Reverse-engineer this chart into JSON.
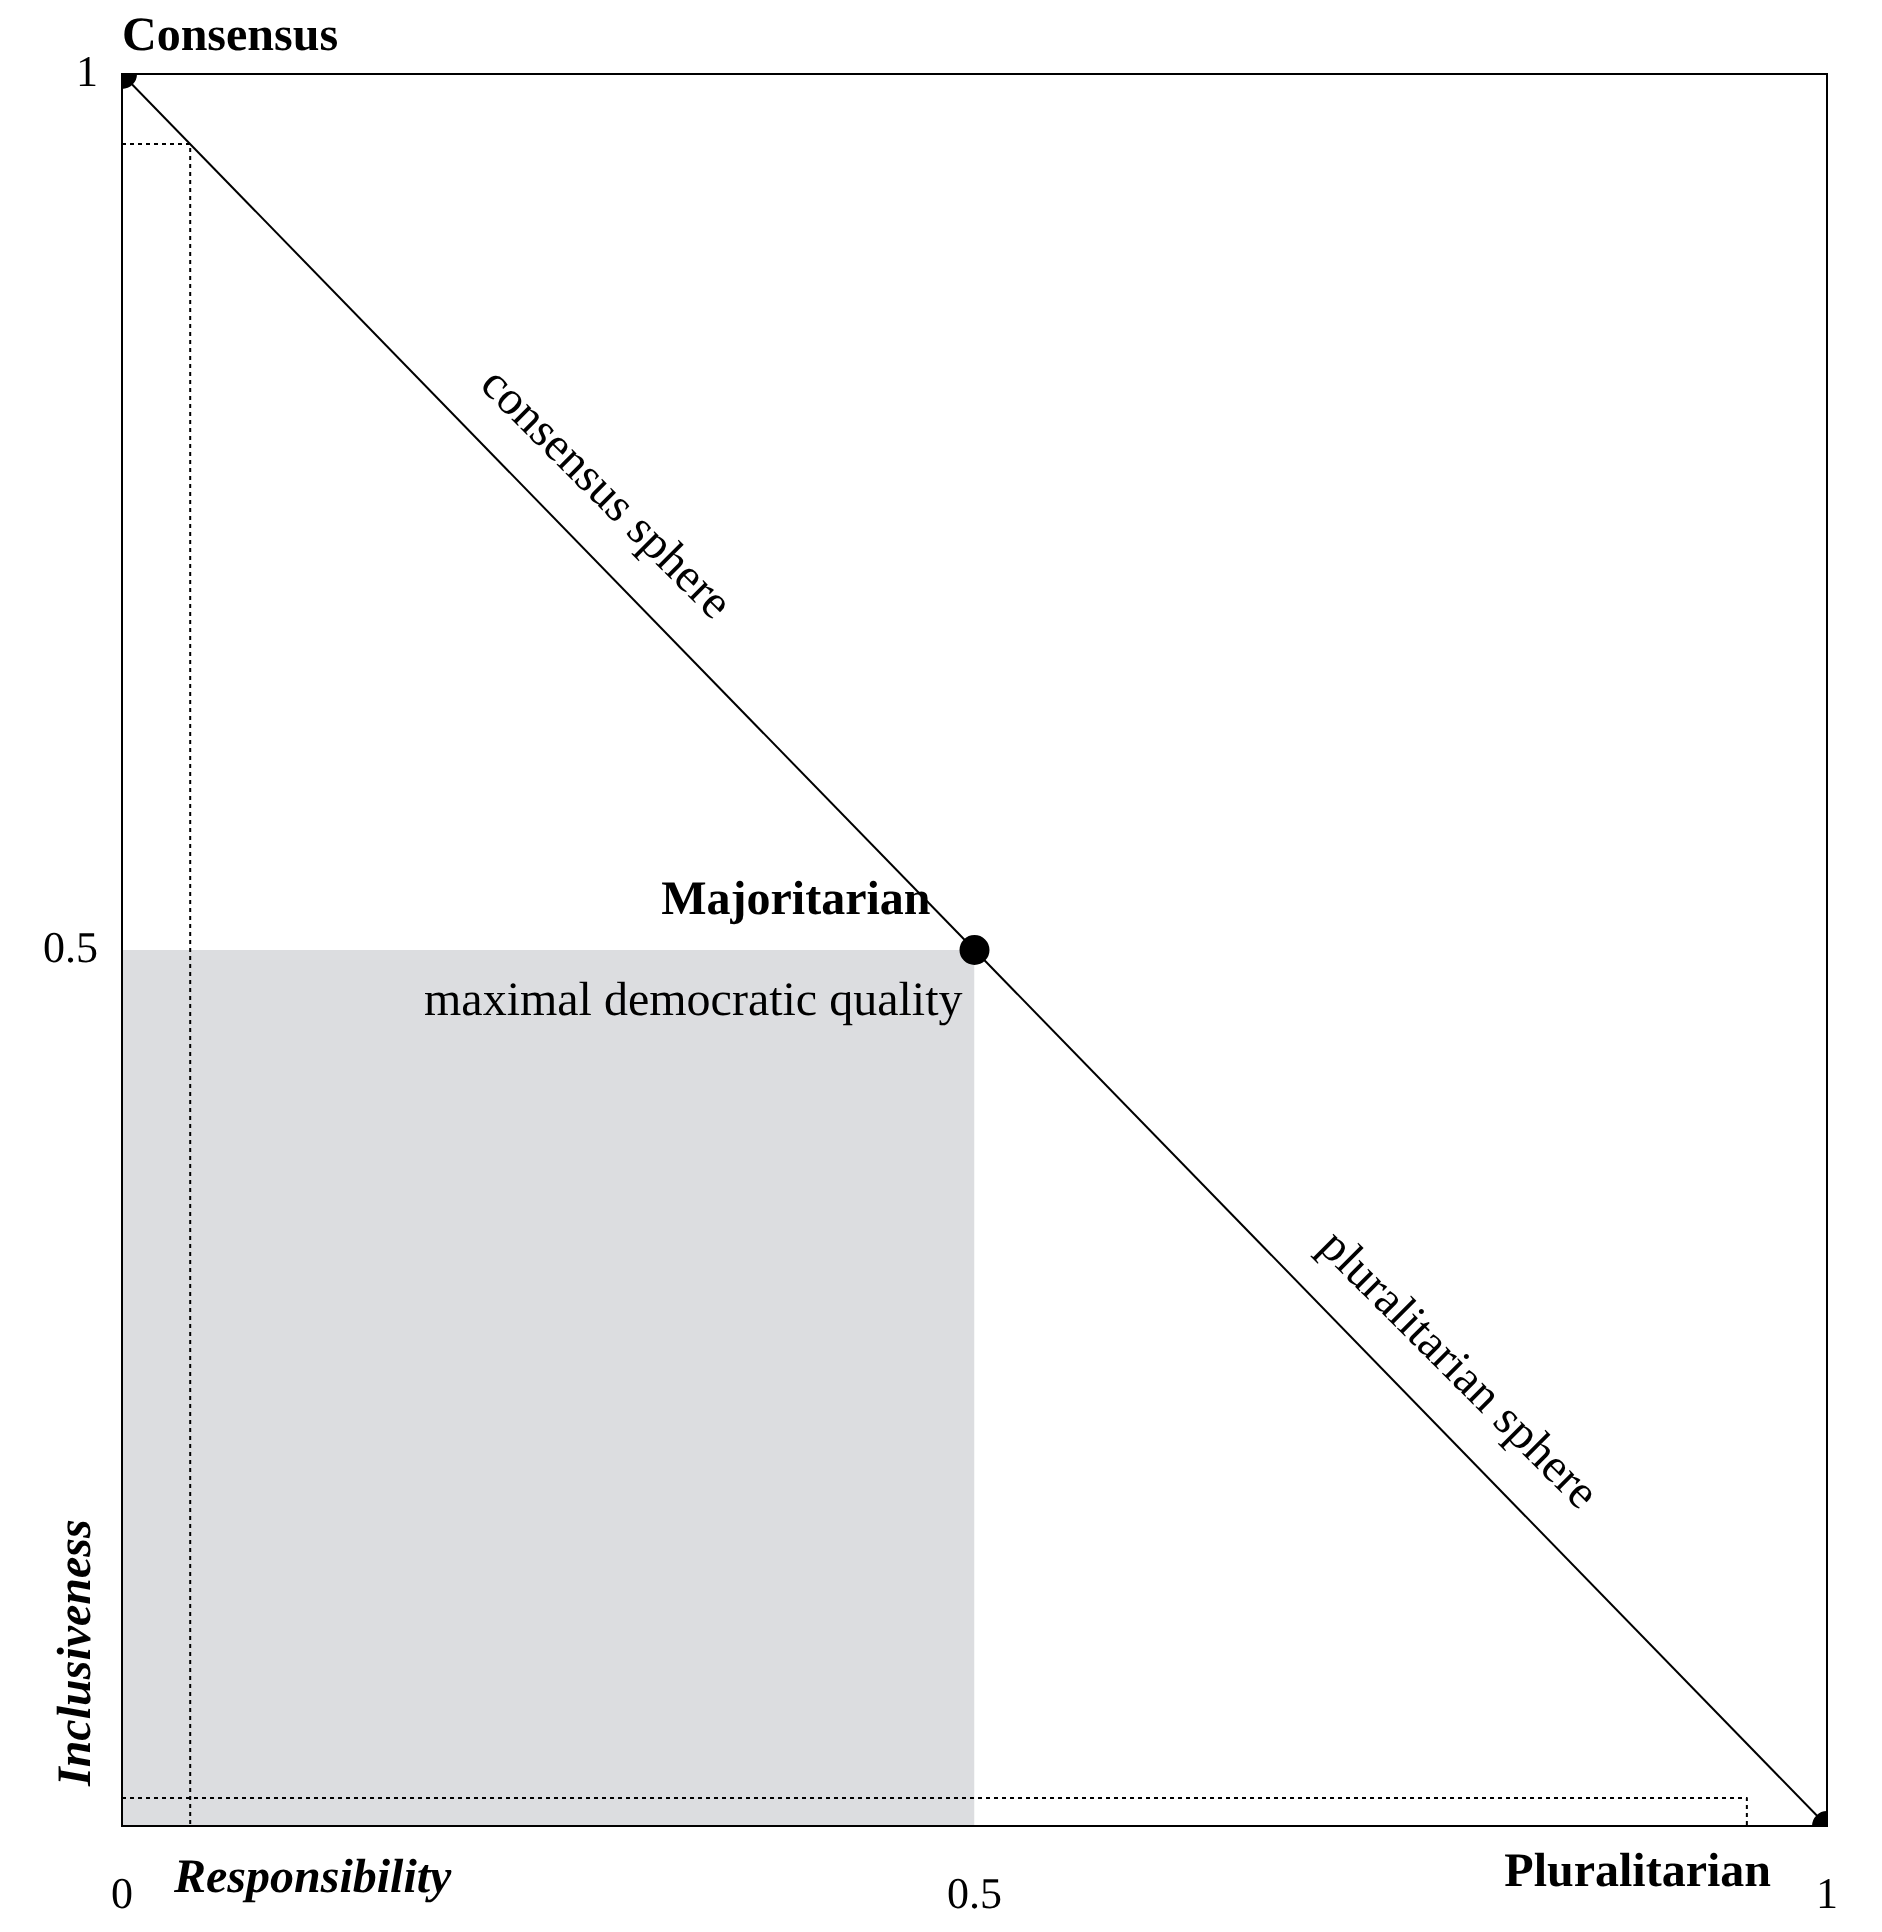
{
  "chart_data": {
    "type": "line",
    "xlabel": "Responsibility",
    "ylabel": "Inclusiveness",
    "xlim": [
      0,
      1
    ],
    "ylim": [
      0,
      1
    ],
    "xticks": [
      0,
      0.5,
      1
    ],
    "yticks": [
      0.5,
      1
    ],
    "grid": false,
    "legend": false,
    "series": [
      {
        "type": "area",
        "color": "#dcdde0",
        "x": [
          0,
          0.5
        ],
        "values": [
          0.5,
          0.5
        ],
        "marker": "none"
      },
      {
        "color": "#000000",
        "x": [
          0,
          0.04,
          0.04
        ],
        "values": [
          0.96,
          0.96,
          0
        ],
        "marker": "none",
        "line_style": "dotted"
      },
      {
        "color": "#000000",
        "x": [
          0,
          0.953,
          0.953
        ],
        "values": [
          0.016,
          0.016,
          0
        ],
        "marker": "none",
        "line_style": "dotted"
      },
      {
        "color": "#000000",
        "x": [
          0,
          0.5,
          1
        ],
        "values": [
          1,
          0.5,
          0
        ],
        "marker": "circle",
        "line_style": "solid"
      }
    ],
    "annotations": [
      {
        "text": "Consensus",
        "x": 0,
        "y": 1
      },
      {
        "text": "Majoritarian",
        "x": 0.5,
        "y": 0.5
      },
      {
        "text": "maximal democratic quality",
        "x": 0.5,
        "y": 0.5
      },
      {
        "text": "Pluralitarian",
        "x": 1,
        "y": 0
      },
      {
        "text": "consensus sphere",
        "x": 0.25,
        "y": 0.75
      },
      {
        "text": "pluralitarian sphere",
        "x": 0.75,
        "y": 0.25
      }
    ]
  }
}
